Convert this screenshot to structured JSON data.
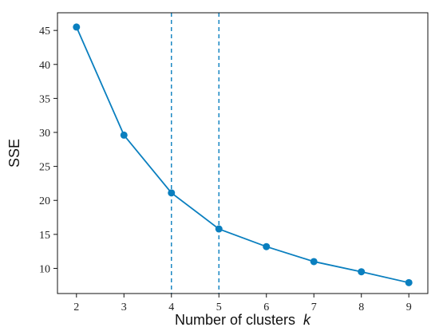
{
  "chart_data": {
    "type": "line",
    "title": "",
    "xlabel": "Number of clusters",
    "xlabel_variable": "k",
    "ylabel": "SSE",
    "x": [
      2,
      3,
      4,
      5,
      6,
      7,
      8,
      9
    ],
    "series": [
      {
        "values": [
          45.5,
          29.6,
          21.1,
          15.8,
          13.2,
          11.0,
          9.5,
          7.9
        ],
        "color": "#0a7fbf"
      }
    ],
    "xlim": [
      1.6,
      9.4
    ],
    "ylim": [
      6.3,
      47.6
    ],
    "x_ticks": [
      "2",
      "3",
      "4",
      "5",
      "6",
      "7",
      "8",
      "9"
    ],
    "y_ticks": [
      "10",
      "15",
      "20",
      "25",
      "30",
      "35",
      "40",
      "45"
    ],
    "reference_lines": {
      "orientation": "vertical",
      "style": "dashed",
      "color": "#0a7fbf",
      "x": [
        4,
        5
      ]
    },
    "grid": false,
    "legend": "none"
  }
}
